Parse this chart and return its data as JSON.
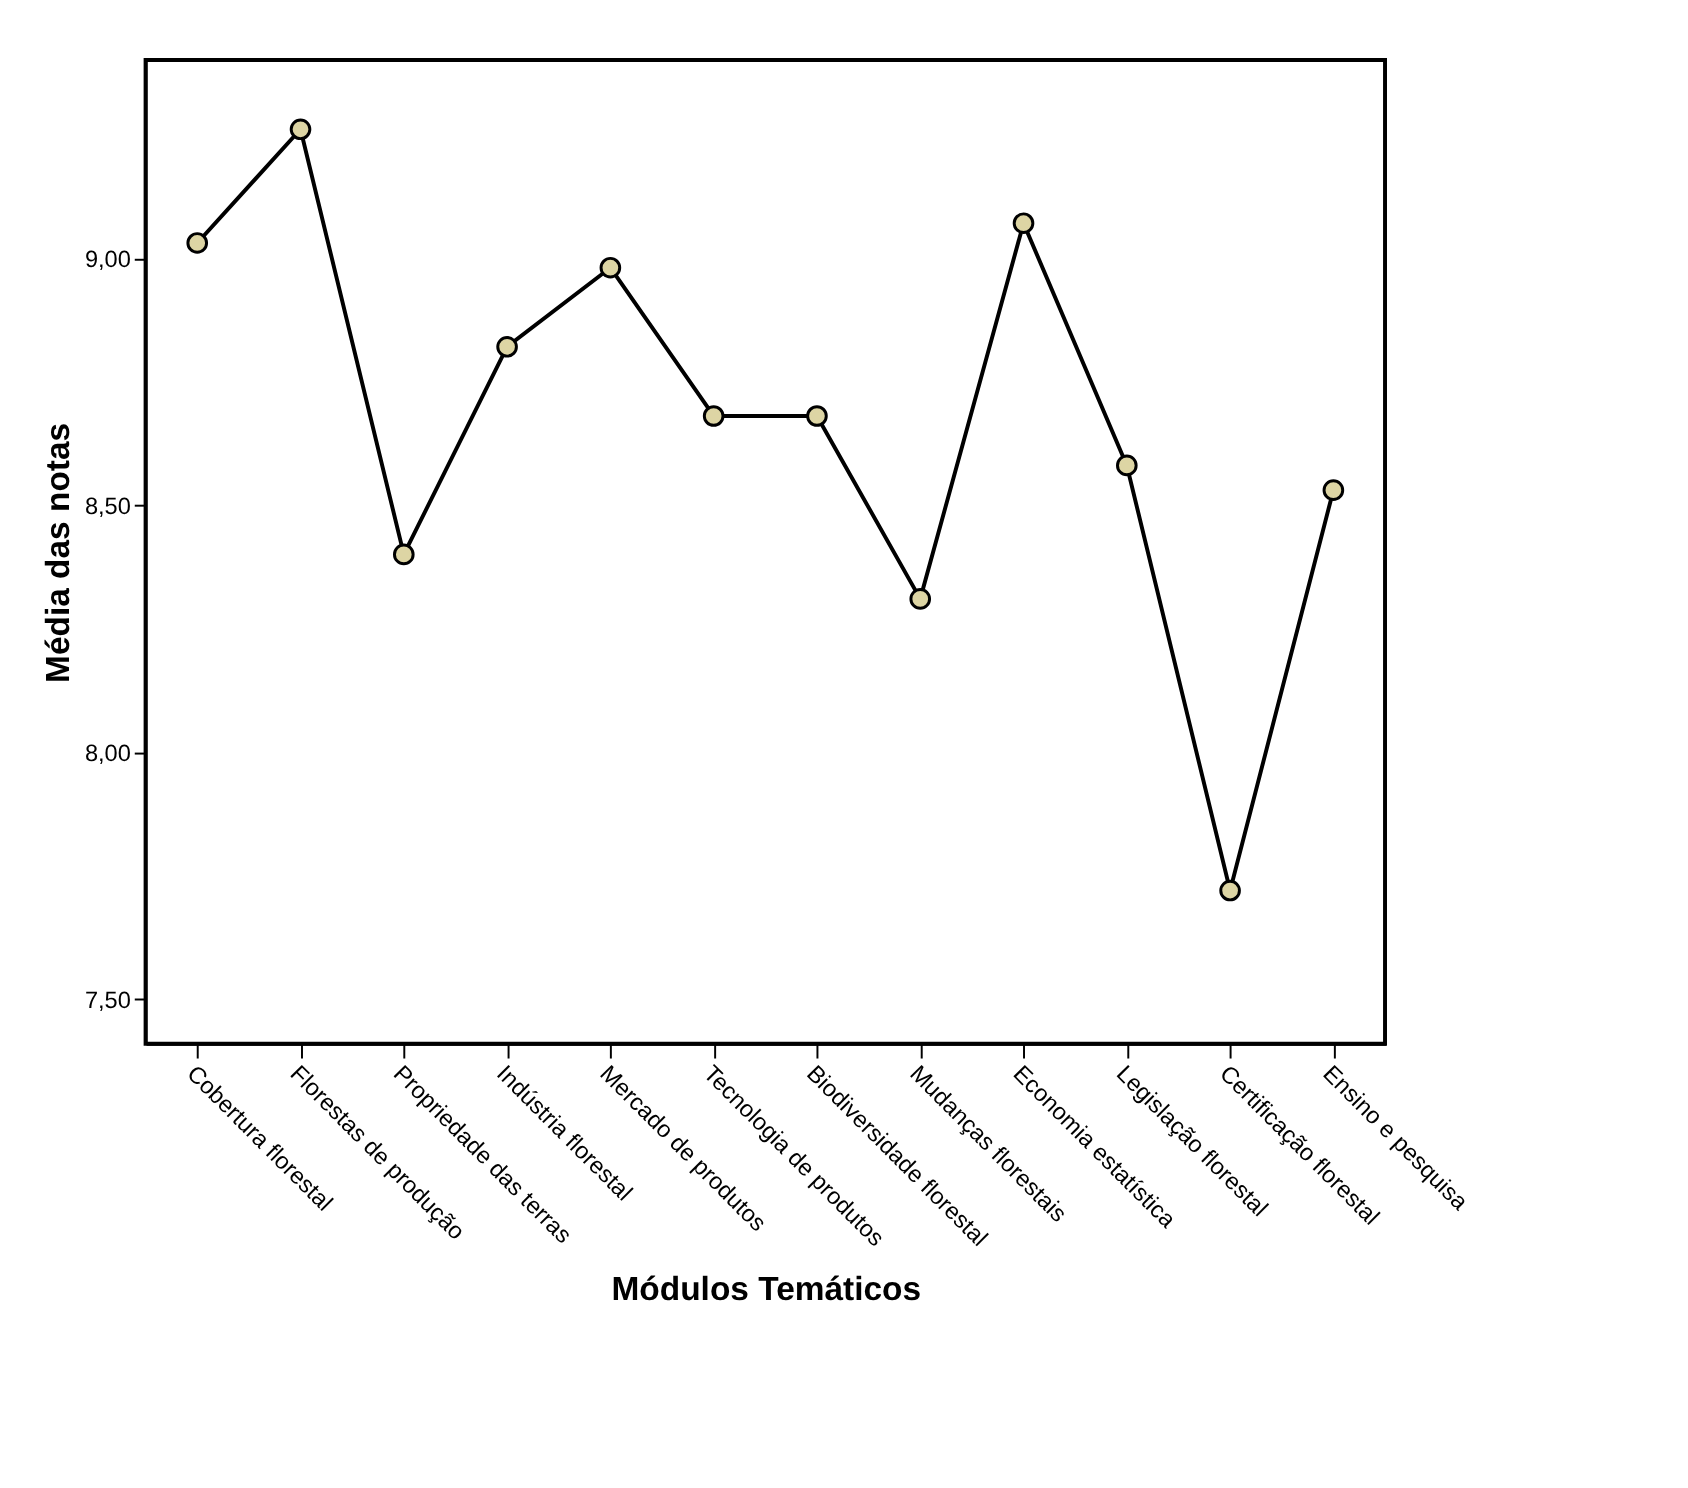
{
  "chart_data": {
    "type": "line",
    "xlabel": "Módulos Temáticos",
    "ylabel": "Média das notas",
    "categories": [
      "Cobertura florestal",
      "Florestas de produção",
      "Propriedade das terras",
      "Indústria florestal",
      "Mercado de produtos",
      "Tecnologia de produtos",
      "Biodiversidade florestal",
      "Mudanças florestais",
      "Economia estatística",
      "Legislação florestal",
      "Certificação florestal",
      "Ensino e pesquisa"
    ],
    "series": [
      {
        "color": "#000000",
        "values": [
          9.03,
          9.26,
          8.4,
          8.82,
          8.98,
          8.68,
          8.68,
          8.31,
          9.07,
          8.58,
          7.72,
          8.53
        ]
      }
    ],
    "marker": "circle",
    "line_style": "solid",
    "grid": false,
    "ylim": [
      7.41,
      9.4
    ],
    "yticks": [
      {
        "value": 7.5,
        "label": "7,50"
      },
      {
        "value": 8.0,
        "label": "8,00"
      },
      {
        "value": 8.5,
        "label": "8,50"
      },
      {
        "value": 9.0,
        "label": "9,00"
      }
    ]
  }
}
